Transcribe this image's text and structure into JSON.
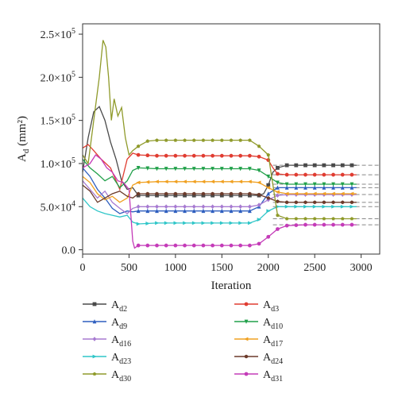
{
  "chart_data": {
    "type": "line",
    "xlabel": "Iteration",
    "ylabel": "A",
    "ylabel_sub": "d",
    "ylabel_unit": " (mm²)",
    "xlim": [
      0,
      3200
    ],
    "ylim": [
      -5000,
      262000
    ],
    "x_ticks": [
      0,
      500,
      1000,
      1500,
      2000,
      2500,
      3000
    ],
    "x_tick_labels": [
      "0",
      "500",
      "1000",
      "1500",
      "2000",
      "2500",
      "3000"
    ],
    "y_ticks": [
      0,
      50000,
      100000,
      150000,
      200000,
      250000
    ],
    "y_tick_labels": [
      {
        "mant": "0.0",
        "exp": ""
      },
      {
        "mant": "5.0×10",
        "exp": "4"
      },
      {
        "mant": "1.0×10",
        "exp": "5"
      },
      {
        "mant": "1.5×10",
        "exp": "5"
      },
      {
        "mant": "2.0×10",
        "exp": "5"
      },
      {
        "mant": "2.5×10",
        "exp": "5"
      }
    ],
    "reference_lines": [
      98000,
      87000,
      76000,
      72000,
      64000,
      55000,
      50000,
      36000,
      29000
    ],
    "grid": false,
    "legend_position": "below",
    "series": [
      {
        "name": "Ad2",
        "name_main": "A",
        "name_sub": "d2",
        "color": "#4a4a4a",
        "marker": "square",
        "x": [
          0,
          60,
          120,
          180,
          240,
          300,
          360,
          420,
          480,
          540,
          600,
          800,
          1000,
          1200,
          1400,
          1600,
          1800,
          1900,
          1950,
          2000,
          2050,
          2100,
          2200,
          2400,
          2600,
          2800,
          2950
        ],
        "y": [
          90000,
          130000,
          160000,
          166000,
          150000,
          125000,
          105000,
          80000,
          70000,
          72000,
          63000,
          63000,
          63000,
          63000,
          63000,
          63000,
          63000,
          63000,
          65000,
          75000,
          90000,
          95000,
          98000,
          98000,
          98000,
          98000,
          98000
        ]
      },
      {
        "name": "Ad3",
        "name_main": "A",
        "name_sub": "d3",
        "color": "#e03c31",
        "marker": "circle",
        "x": [
          0,
          60,
          120,
          200,
          300,
          400,
          480,
          540,
          600,
          800,
          1000,
          1200,
          1400,
          1600,
          1800,
          1900,
          2000,
          2050,
          2100,
          2200,
          2400,
          2600,
          2800,
          2950
        ],
        "y": [
          118000,
          122000,
          115000,
          105000,
          95000,
          70000,
          105000,
          112000,
          110000,
          109000,
          109000,
          109000,
          109000,
          109000,
          109000,
          108000,
          104000,
          95000,
          88000,
          87000,
          87000,
          87000,
          87000,
          87000
        ]
      },
      {
        "name": "Ad9",
        "name_main": "A",
        "name_sub": "d9",
        "color": "#2f5fbf",
        "marker": "triangle",
        "x": [
          0,
          80,
          160,
          240,
          320,
          400,
          480,
          540,
          600,
          800,
          1000,
          1200,
          1400,
          1600,
          1800,
          1900,
          2000,
          2100,
          2200,
          2400,
          2600,
          2800,
          2950
        ],
        "y": [
          95000,
          85000,
          70000,
          60000,
          48000,
          42000,
          45000,
          44000,
          45000,
          45000,
          45000,
          45000,
          45000,
          45000,
          45000,
          50000,
          65000,
          72000,
          72000,
          72000,
          72000,
          72000,
          72000
        ]
      },
      {
        "name": "Ad10",
        "name_main": "A",
        "name_sub": "d10",
        "color": "#21a04a",
        "marker": "triangle-down",
        "x": [
          0,
          80,
          160,
          240,
          320,
          400,
          480,
          540,
          600,
          800,
          1000,
          1200,
          1400,
          1600,
          1800,
          1900,
          2000,
          2100,
          2200,
          2400,
          2600,
          2800,
          2950
        ],
        "y": [
          105000,
          95000,
          88000,
          80000,
          85000,
          72000,
          80000,
          92000,
          95000,
          94000,
          94000,
          94000,
          94000,
          94000,
          94000,
          92000,
          85000,
          78000,
          76000,
          76000,
          76000,
          76000,
          76000
        ]
      },
      {
        "name": "Ad16",
        "name_main": "A",
        "name_sub": "d16",
        "color": "#a77ad1",
        "marker": "diamond",
        "x": [
          0,
          80,
          160,
          240,
          320,
          400,
          480,
          540,
          600,
          800,
          1000,
          1200,
          1400,
          1600,
          1800,
          1900,
          2000,
          2100,
          2200,
          2400,
          2600,
          2800,
          2950
        ],
        "y": [
          80000,
          70000,
          60000,
          68000,
          55000,
          48000,
          42000,
          48000,
          50000,
          50000,
          50000,
          50000,
          50000,
          50000,
          50000,
          52000,
          58000,
          63000,
          64000,
          64000,
          64000,
          64000,
          64000
        ]
      },
      {
        "name": "Ad17",
        "name_main": "A",
        "name_sub": "d17",
        "color": "#f0a020",
        "marker": "triangle-left",
        "x": [
          0,
          80,
          160,
          240,
          320,
          400,
          480,
          540,
          600,
          800,
          1000,
          1200,
          1400,
          1600,
          1800,
          1900,
          2000,
          2100,
          2200,
          2400,
          2600,
          2800,
          2950
        ],
        "y": [
          85000,
          78000,
          65000,
          58000,
          62000,
          55000,
          60000,
          75000,
          78000,
          79000,
          79000,
          79000,
          79000,
          79000,
          79000,
          78000,
          72000,
          67000,
          65000,
          65000,
          65000,
          65000,
          65000
        ]
      },
      {
        "name": "Ad23",
        "name_main": "A",
        "name_sub": "d23",
        "color": "#2fc6c8",
        "marker": "triangle-right",
        "x": [
          0,
          80,
          160,
          240,
          320,
          400,
          480,
          540,
          600,
          800,
          1000,
          1200,
          1400,
          1600,
          1800,
          1900,
          2000,
          2100,
          2200,
          2400,
          2600,
          2800,
          2950
        ],
        "y": [
          60000,
          50000,
          45000,
          42000,
          40000,
          38000,
          40000,
          32000,
          30000,
          31000,
          31000,
          31000,
          31000,
          31000,
          31000,
          35000,
          45000,
          50000,
          50000,
          50000,
          50000,
          50000,
          50000
        ]
      },
      {
        "name": "Ad24",
        "name_main": "A",
        "name_sub": "d24",
        "color": "#6b3a2a",
        "marker": "hexagon",
        "x": [
          0,
          80,
          160,
          240,
          320,
          400,
          480,
          540,
          600,
          800,
          1000,
          1200,
          1400,
          1600,
          1800,
          1900,
          2000,
          2100,
          2200,
          2400,
          2600,
          2800,
          2950
        ],
        "y": [
          75000,
          68000,
          55000,
          60000,
          65000,
          68000,
          62000,
          60000,
          65000,
          65000,
          65000,
          65000,
          65000,
          65000,
          65000,
          64000,
          60000,
          56000,
          55000,
          55000,
          55000,
          55000,
          55000
        ]
      },
      {
        "name": "Ad30",
        "name_main": "A",
        "name_sub": "d30",
        "color": "#8f9a2a",
        "marker": "pentagon",
        "x": [
          0,
          60,
          120,
          180,
          220,
          250,
          280,
          310,
          340,
          380,
          420,
          460,
          500,
          540,
          600,
          700,
          800,
          1000,
          1200,
          1400,
          1600,
          1800,
          1900,
          2000,
          2050,
          2100,
          2200,
          2400,
          2600,
          2800,
          2950
        ],
        "y": [
          110000,
          100000,
          150000,
          200000,
          243000,
          235000,
          200000,
          150000,
          175000,
          155000,
          165000,
          130000,
          110000,
          115000,
          120000,
          126000,
          127000,
          127000,
          127000,
          127000,
          127000,
          127000,
          120000,
          110000,
          75000,
          40000,
          36000,
          36000,
          36000,
          36000,
          36000
        ]
      },
      {
        "name": "Ad31",
        "name_main": "A",
        "name_sub": "d31",
        "color": "#c43bb8",
        "marker": "circle",
        "x": [
          0,
          80,
          140,
          200,
          260,
          320,
          380,
          440,
          500,
          540,
          560,
          600,
          800,
          1000,
          1200,
          1400,
          1600,
          1800,
          1900,
          2000,
          2100,
          2200,
          2400,
          2600,
          2800,
          2950
        ],
        "y": [
          95000,
          100000,
          110000,
          105000,
          95000,
          90000,
          80000,
          78000,
          70000,
          10000,
          2000,
          5000,
          5000,
          5000,
          5000,
          5000,
          5000,
          5000,
          7000,
          15000,
          24000,
          28000,
          29000,
          29000,
          29000,
          29000
        ]
      }
    ]
  }
}
